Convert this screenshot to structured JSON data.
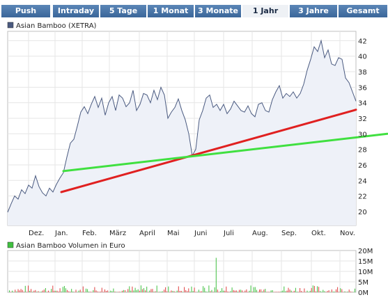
{
  "tabs": [
    {
      "label": "Push",
      "active": false
    },
    {
      "label": "Intraday",
      "active": false
    },
    {
      "label": "5 Tage",
      "active": false
    },
    {
      "label": "1 Monat",
      "active": false
    },
    {
      "label": "3 Monate",
      "active": false
    },
    {
      "label": "1 Jahr",
      "active": true
    },
    {
      "label": "3 Jahre",
      "active": false
    },
    {
      "label": "Gesamt",
      "active": false
    }
  ],
  "chart_data": [
    {
      "type": "line",
      "legend": "Asian Bamboo (XETRA)",
      "legend_color": "#4a5a80",
      "x_tick_labels": [
        "Dez.",
        "Jan.",
        "Feb.",
        "März",
        "April",
        "Mai",
        "Juni",
        "Juli",
        "Aug.",
        "Sep.",
        "Okt.",
        "Nov."
      ],
      "y_tick_labels": [
        "20",
        "22",
        "24",
        "26",
        "28",
        "30",
        "32",
        "34",
        "36",
        "38",
        "40",
        "42"
      ],
      "ylim": [
        18.2,
        43.2
      ],
      "xlim": [
        0,
        1
      ],
      "x": [
        0.0,
        0.01,
        0.02,
        0.03,
        0.04,
        0.05,
        0.06,
        0.07,
        0.08,
        0.09,
        0.1,
        0.11,
        0.12,
        0.13,
        0.14,
        0.15,
        0.16,
        0.17,
        0.18,
        0.19,
        0.2,
        0.21,
        0.22,
        0.23,
        0.24,
        0.25,
        0.26,
        0.27,
        0.28,
        0.29,
        0.3,
        0.31,
        0.32,
        0.33,
        0.34,
        0.35,
        0.36,
        0.37,
        0.38,
        0.39,
        0.4,
        0.41,
        0.42,
        0.43,
        0.44,
        0.45,
        0.46,
        0.47,
        0.48,
        0.49,
        0.5,
        0.51,
        0.52,
        0.53,
        0.54,
        0.55,
        0.56,
        0.57,
        0.58,
        0.59,
        0.6,
        0.61,
        0.62,
        0.63,
        0.64,
        0.65,
        0.66,
        0.67,
        0.68,
        0.69,
        0.7,
        0.71,
        0.72,
        0.73,
        0.74,
        0.75,
        0.76,
        0.77,
        0.78,
        0.79,
        0.8,
        0.81,
        0.82,
        0.83,
        0.84,
        0.85,
        0.86,
        0.87,
        0.88,
        0.89,
        0.9,
        0.91,
        0.92,
        0.93,
        0.94,
        0.95,
        0.96,
        0.97,
        0.98,
        0.99,
        1.0
      ],
      "values": [
        19.9,
        21.0,
        22.0,
        21.6,
        22.8,
        22.3,
        23.4,
        23.0,
        24.6,
        23.2,
        22.4,
        22.0,
        23.0,
        22.5,
        23.5,
        24.3,
        25.0,
        27.0,
        28.8,
        29.3,
        31.0,
        32.8,
        33.5,
        32.6,
        33.8,
        34.8,
        33.4,
        34.6,
        32.4,
        34.0,
        34.8,
        33.0,
        35.0,
        34.6,
        33.5,
        34.0,
        35.6,
        33.0,
        33.8,
        35.2,
        35.0,
        34.0,
        35.6,
        34.4,
        36.0,
        35.0,
        32.0,
        32.8,
        33.4,
        34.5,
        33.0,
        31.8,
        30.0,
        27.2,
        28.0,
        31.8,
        33.0,
        34.6,
        35.0,
        33.4,
        33.8,
        33.0,
        33.8,
        32.6,
        33.2,
        34.2,
        33.6,
        33.0,
        32.8,
        33.6,
        32.6,
        32.2,
        33.8,
        34.0,
        33.0,
        32.8,
        34.4,
        35.4,
        36.2,
        34.6,
        35.2,
        34.8,
        35.4,
        34.6,
        35.2,
        36.4,
        38.2,
        39.6,
        41.2,
        40.6,
        42.0,
        39.8,
        40.8,
        39.0,
        38.8,
        39.8,
        39.6,
        37.2,
        36.6,
        35.4,
        34.2
      ],
      "line_color": "#4a5a80",
      "fill_color": "#eef1f8",
      "trendlines": [
        {
          "color": "#e02020",
          "x": [
            0.154,
            1.0
          ],
          "values": [
            22.5,
            33.1
          ]
        },
        {
          "color": "#40e040",
          "x": [
            0.16,
            1.09
          ],
          "values": [
            25.2,
            30.0
          ]
        }
      ],
      "grid": true
    },
    {
      "type": "bar",
      "legend": "Asian Bamboo Volumen in Euro",
      "legend_color": "#40c040",
      "y_tick_labels": [
        "0M",
        "5M",
        "10M",
        "15M",
        "20M"
      ],
      "ylim": [
        0,
        20
      ],
      "spike": {
        "x": 0.6,
        "value": 16.5
      },
      "typical_range": [
        0.2,
        3.5
      ],
      "up_color": "#40c040",
      "down_color": "#e04040",
      "grid": true
    }
  ]
}
